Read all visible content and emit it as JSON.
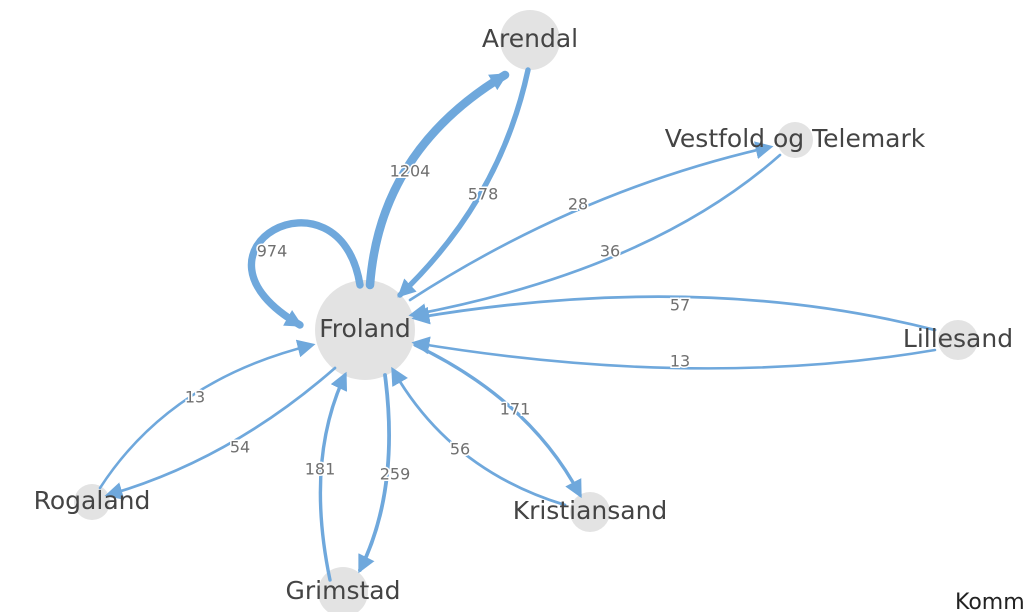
{
  "nodes": [
    {
      "label": "Froland"
    },
    {
      "label": "Arendal"
    },
    {
      "label": "Vestfold og Telemark"
    },
    {
      "label": "Lillesand"
    },
    {
      "label": "Rogaland"
    },
    {
      "label": "Grimstad"
    },
    {
      "label": "Kristiansand"
    }
  ],
  "edges": [
    {
      "source": 0,
      "target": 1,
      "value": 1204
    },
    {
      "source": 1,
      "target": 0,
      "value": 578
    },
    {
      "source": 0,
      "target": 0,
      "value": 974
    },
    {
      "source": 0,
      "target": 2,
      "value": 28
    },
    {
      "source": 2,
      "target": 0,
      "value": 36
    },
    {
      "source": 3,
      "target": 0,
      "value": 57
    },
    {
      "source": 3,
      "target": 0,
      "value": 13
    },
    {
      "source": 4,
      "target": 0,
      "value": 13
    },
    {
      "source": 0,
      "target": 4,
      "value": 54
    },
    {
      "source": 5,
      "target": 0,
      "value": 181
    },
    {
      "source": 0,
      "target": 5,
      "value": 259
    },
    {
      "source": 0,
      "target": 6,
      "value": 171
    },
    {
      "source": 6,
      "target": 0,
      "value": 56
    }
  ],
  "footer": "Komm"
}
